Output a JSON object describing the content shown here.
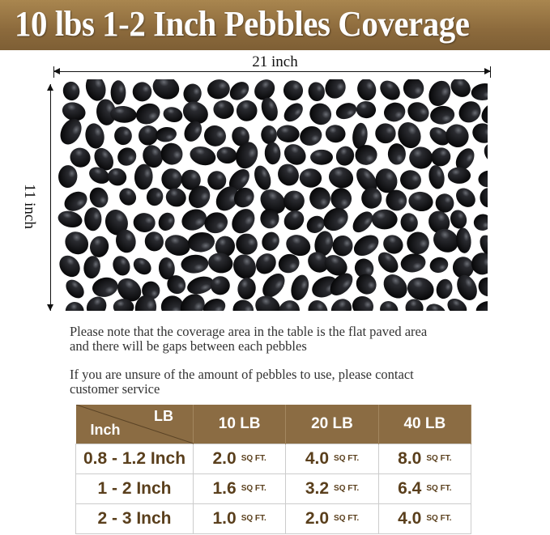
{
  "title": "10 lbs 1-2 Inch Pebbles Coverage",
  "width_label": "21 inch",
  "height_label": "11 inch",
  "notes": [
    "Please note that the coverage area in the table is the flat paved area",
    "and there will be gaps between each pebbles",
    "If you are unsure of the amount of pebbles to use, please contact",
    "customer service"
  ],
  "table": {
    "corner_top": "LB",
    "corner_bottom": "Inch",
    "headers": [
      "10 LB",
      "20 LB",
      "40 LB"
    ],
    "unit": "SQ FT.",
    "rows": [
      {
        "size": "0.8 - 1.2 Inch",
        "values": [
          "2.0",
          "4.0",
          "8.0"
        ]
      },
      {
        "size": "1 - 2 Inch",
        "values": [
          "1.6",
          "3.2",
          "6.4"
        ]
      },
      {
        "size": "2 - 3 Inch",
        "values": [
          "1.0",
          "2.0",
          "4.0"
        ]
      }
    ]
  },
  "colors": {
    "banner": "#8c6a3c",
    "table_header": "#8b6c43",
    "table_text": "#5a3f1c"
  }
}
